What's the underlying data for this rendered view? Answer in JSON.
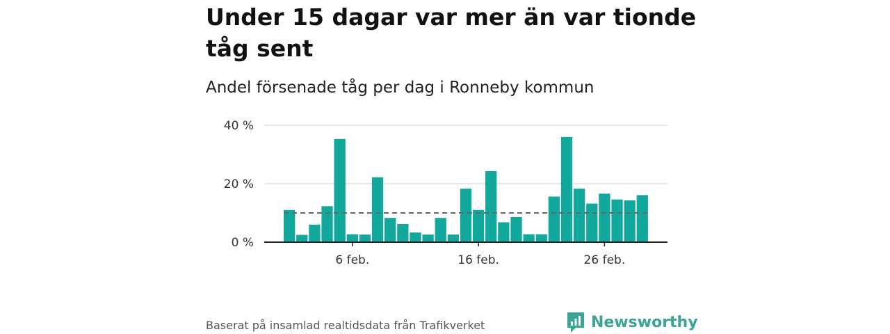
{
  "header": {
    "title": "Under 15 dagar var mer än var tionde tåg sent",
    "subtitle": "Andel försenade tåg per dag i Ronneby kommun"
  },
  "footer": {
    "source": "Baserat på insamlad realtidsdata från Trafikverket",
    "brand": "Newsworthy"
  },
  "colors": {
    "bar": "#13a89e",
    "grid": "#dddddd",
    "axis": "#222222",
    "reference_line": "#666666",
    "brand": "#3aa597"
  },
  "icons": {
    "brand_logo": "newsworthy-logo-icon"
  },
  "chart_data": {
    "type": "bar",
    "title": "Under 15 dagar var mer än var tionde tåg sent",
    "subtitle": "Andel försenade tåg per dag i Ronneby kommun",
    "xlabel": "",
    "ylabel": "",
    "x": [
      "2024-02-01",
      "2024-02-02",
      "2024-02-03",
      "2024-02-04",
      "2024-02-05",
      "2024-02-06",
      "2024-02-07",
      "2024-02-08",
      "2024-02-09",
      "2024-02-10",
      "2024-02-11",
      "2024-02-12",
      "2024-02-13",
      "2024-02-14",
      "2024-02-15",
      "2024-02-16",
      "2024-02-17",
      "2024-02-18",
      "2024-02-19",
      "2024-02-20",
      "2024-02-21",
      "2024-02-22",
      "2024-02-23",
      "2024-02-24",
      "2024-02-25",
      "2024-02-26",
      "2024-02-27",
      "2024-02-28",
      "2024-02-29"
    ],
    "values": [
      11,
      2.5,
      6,
      12.3,
      35.3,
      2.7,
      2.6,
      22.2,
      8.3,
      6.2,
      3.3,
      2.6,
      8.3,
      2.6,
      18.3,
      11,
      24.3,
      6.8,
      8.6,
      2.7,
      2.7,
      15.6,
      36,
      18.3,
      13.2,
      16.6,
      14.6,
      14.3,
      16.1
    ],
    "ylim": [
      0,
      40
    ],
    "y_ticks": [
      0,
      20,
      40
    ],
    "y_tick_labels": [
      "0 %",
      "20 %",
      "40 %"
    ],
    "x_ticks": [
      "2024-02-06",
      "2024-02-16",
      "2024-02-26"
    ],
    "x_tick_labels": [
      "6 feb.",
      "16 feb.",
      "26 feb."
    ],
    "reference_line": 10,
    "grid": true,
    "legend": "none"
  }
}
